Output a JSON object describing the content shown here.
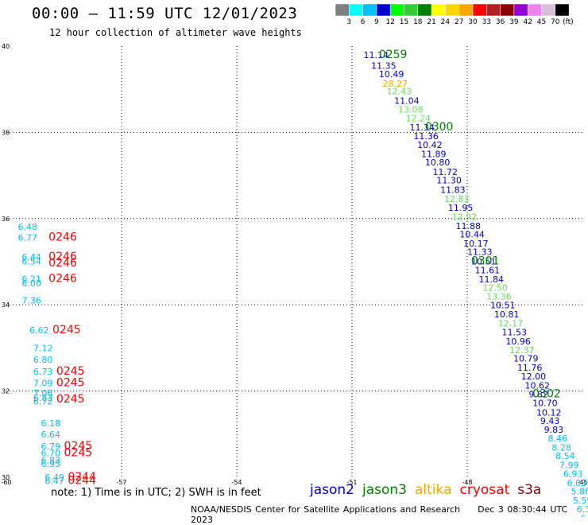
{
  "header": {
    "title": "00:00 – 11:59 UTC 12/01/2023",
    "subtitle": "12 hour collection of altimeter wave heights"
  },
  "colorbar": {
    "colors": [
      "#808080",
      "#00ffff",
      "#00bfff",
      "#0000cd",
      "#00ff00",
      "#32cd32",
      "#008000",
      "#ffff00",
      "#ffd700",
      "#ffa500",
      "#ff0000",
      "#b22222",
      "#8b0000",
      "#9400d3",
      "#ee82ee",
      "#d8bfd8",
      "#000000"
    ],
    "labels": [
      "3",
      "6",
      "9",
      "12",
      "15",
      "18",
      "21",
      "24",
      "27",
      "30",
      "33",
      "36",
      "39",
      "42",
      "45",
      "70"
    ],
    "unit": "(ft)"
  },
  "axes": {
    "lon_ticks": [
      "-60",
      "-57",
      "-54",
      "-51",
      "-48",
      "-45"
    ],
    "lat_ticks": [
      "40",
      "38",
      "36",
      "34",
      "32",
      "30"
    ]
  },
  "palette": {
    "jason2": "#0000cd",
    "jason3": "#008000",
    "altika": "#ffa500",
    "cryosat": "#ff0000",
    "s3a": "#8b0000",
    "cyan": "#00bfff",
    "lightgreen": "#66dd66"
  },
  "tracks": {
    "east": [
      {
        "lon": -50.7,
        "lat": 39.72,
        "v": "11.14",
        "c": "jason2"
      },
      {
        "lon": -50.5,
        "lat": 39.47,
        "v": "11.35",
        "c": "jason2"
      },
      {
        "lon": -50.3,
        "lat": 39.28,
        "v": "10.49",
        "c": "jason2"
      },
      {
        "lon": -50.2,
        "lat": 39.06,
        "v": "28.27",
        "c": "altika"
      },
      {
        "lon": -50.1,
        "lat": 38.88,
        "v": "12.43",
        "c": "lightgreen"
      },
      {
        "lon": -49.9,
        "lat": 38.66,
        "v": "11.04",
        "c": "jason2"
      },
      {
        "lon": -49.8,
        "lat": 38.46,
        "v": "13.08",
        "c": "lightgreen"
      },
      {
        "lon": -49.6,
        "lat": 38.26,
        "v": "12.24",
        "c": "lightgreen"
      },
      {
        "lon": -49.5,
        "lat": 38.04,
        "v": "11.34",
        "c": "jason2"
      },
      {
        "lon": -49.4,
        "lat": 37.84,
        "v": "11.36",
        "c": "jason2"
      },
      {
        "lon": -49.3,
        "lat": 37.64,
        "v": "10.42",
        "c": "jason2"
      },
      {
        "lon": -49.2,
        "lat": 37.43,
        "v": "11.89",
        "c": "jason2"
      },
      {
        "lon": -49.1,
        "lat": 37.23,
        "v": "10.80",
        "c": "jason2"
      },
      {
        "lon": -48.9,
        "lat": 37.01,
        "v": "11.72",
        "c": "jason2"
      },
      {
        "lon": -48.8,
        "lat": 36.82,
        "v": "11.30",
        "c": "jason2"
      },
      {
        "lon": -48.7,
        "lat": 36.6,
        "v": "11.83",
        "c": "jason2"
      },
      {
        "lon": -48.6,
        "lat": 36.38,
        "v": "12.83",
        "c": "lightgreen"
      },
      {
        "lon": -48.5,
        "lat": 36.18,
        "v": "11.95",
        "c": "jason2"
      },
      {
        "lon": -48.4,
        "lat": 35.97,
        "v": "12.92",
        "c": "lightgreen"
      },
      {
        "lon": -48.3,
        "lat": 35.76,
        "v": "11.88",
        "c": "jason2"
      },
      {
        "lon": -48.2,
        "lat": 35.56,
        "v": "10.44",
        "c": "jason2"
      },
      {
        "lon": -48.1,
        "lat": 35.35,
        "v": "10.17",
        "c": "jason2"
      },
      {
        "lon": -48.0,
        "lat": 35.16,
        "v": "11.33",
        "c": "jason2"
      },
      {
        "lon": -47.9,
        "lat": 34.94,
        "v": "10.51",
        "c": "jason2"
      },
      {
        "lon": -47.8,
        "lat": 34.73,
        "v": "11.61",
        "c": "jason2"
      },
      {
        "lon": -47.7,
        "lat": 34.52,
        "v": "11.84",
        "c": "jason2"
      },
      {
        "lon": -47.6,
        "lat": 34.33,
        "v": "12.50",
        "c": "lightgreen"
      },
      {
        "lon": -47.5,
        "lat": 34.12,
        "v": "13.36",
        "c": "lightgreen"
      },
      {
        "lon": -47.4,
        "lat": 33.92,
        "v": "10.51",
        "c": "jason2"
      },
      {
        "lon": -47.3,
        "lat": 33.71,
        "v": "10.81",
        "c": "jason2"
      },
      {
        "lon": -47.2,
        "lat": 33.5,
        "v": "12.17",
        "c": "lightgreen"
      },
      {
        "lon": -47.1,
        "lat": 33.29,
        "v": "11.53",
        "c": "jason2"
      },
      {
        "lon": -47.0,
        "lat": 33.08,
        "v": "10.96",
        "c": "jason2"
      },
      {
        "lon": -46.9,
        "lat": 32.88,
        "v": "12.37",
        "c": "lightgreen"
      },
      {
        "lon": -46.8,
        "lat": 32.68,
        "v": "10.79",
        "c": "jason2"
      },
      {
        "lon": -46.7,
        "lat": 32.47,
        "v": "11.76",
        "c": "jason2"
      },
      {
        "lon": -46.6,
        "lat": 32.27,
        "v": "12.00",
        "c": "jason2"
      },
      {
        "lon": -46.5,
        "lat": 32.06,
        "v": "10.62",
        "c": "jason2"
      },
      {
        "lon": -46.4,
        "lat": 31.85,
        "v": "9.82",
        "c": "jason2"
      },
      {
        "lon": -46.3,
        "lat": 31.65,
        "v": "10.70",
        "c": "jason2"
      },
      {
        "lon": -46.2,
        "lat": 31.43,
        "v": "10.12",
        "c": "jason2"
      },
      {
        "lon": -46.1,
        "lat": 31.24,
        "v": "9.43",
        "c": "jason2"
      },
      {
        "lon": -46.0,
        "lat": 31.03,
        "v": "9.83",
        "c": "jason2"
      },
      {
        "lon": -45.9,
        "lat": 30.83,
        "v": "8.46",
        "c": "cyan"
      },
      {
        "lon": -45.8,
        "lat": 30.62,
        "v": "8.28",
        "c": "cyan"
      },
      {
        "lon": -45.7,
        "lat": 30.42,
        "v": "8.54",
        "c": "cyan"
      },
      {
        "lon": -45.6,
        "lat": 30.21,
        "v": "7.99",
        "c": "cyan"
      },
      {
        "lon": -45.5,
        "lat": 30.01,
        "v": "6.93",
        "c": "cyan"
      },
      {
        "lon": -45.4,
        "lat": 29.8,
        "v": "6.03",
        "c": "cyan"
      },
      {
        "lon": -45.3,
        "lat": 29.6,
        "v": "5.86",
        "c": "cyan"
      },
      {
        "lon": -45.25,
        "lat": 29.39,
        "v": "5.59",
        "c": "cyan"
      },
      {
        "lon": -45.15,
        "lat": 29.19,
        "v": "6.30",
        "c": "cyan"
      },
      {
        "lon": -45.05,
        "lat": 28.98,
        "v": "6.09",
        "c": "cyan"
      }
    ],
    "west": [
      {
        "lon": -59.7,
        "lat": 35.74,
        "v": "6.48",
        "c": "cyan"
      },
      {
        "lon": -59.7,
        "lat": 35.49,
        "v": "6.77",
        "c": "cyan"
      },
      {
        "lon": -59.6,
        "lat": 35.04,
        "v": "6.44",
        "c": "cyan"
      },
      {
        "lon": -59.6,
        "lat": 34.94,
        "v": "6.54",
        "c": "cyan"
      },
      {
        "lon": -59.6,
        "lat": 34.53,
        "v": "6.21",
        "c": "cyan"
      },
      {
        "lon": -59.6,
        "lat": 34.43,
        "v": "6.00",
        "c": "cyan"
      },
      {
        "lon": -59.6,
        "lat": 34.03,
        "v": "7.36",
        "c": "cyan"
      },
      {
        "lon": -59.4,
        "lat": 33.34,
        "v": "6.62",
        "c": "cyan"
      },
      {
        "lon": -59.3,
        "lat": 32.92,
        "v": "7.12",
        "c": "cyan"
      },
      {
        "lon": -59.3,
        "lat": 32.66,
        "v": "6.80",
        "c": "cyan"
      },
      {
        "lon": -59.3,
        "lat": 32.38,
        "v": "6.73",
        "c": "cyan"
      },
      {
        "lon": -59.3,
        "lat": 32.11,
        "v": "7.09",
        "c": "cyan"
      },
      {
        "lon": -59.3,
        "lat": 31.88,
        "v": "7.06",
        "c": "cyan"
      },
      {
        "lon": -59.3,
        "lat": 31.77,
        "v": "6.83",
        "c": "cyan"
      },
      {
        "lon": -59.3,
        "lat": 31.69,
        "v": "6.72",
        "c": "cyan"
      },
      {
        "lon": -59.1,
        "lat": 31.18,
        "v": "6.18",
        "c": "cyan"
      },
      {
        "lon": -59.1,
        "lat": 30.92,
        "v": "6.64",
        "c": "cyan"
      },
      {
        "lon": -59.1,
        "lat": 30.65,
        "v": "6.79",
        "c": "cyan"
      },
      {
        "lon": -59.1,
        "lat": 30.49,
        "v": "6.70",
        "c": "cyan"
      },
      {
        "lon": -59.1,
        "lat": 30.32,
        "v": "6.83",
        "c": "cyan"
      },
      {
        "lon": -59.1,
        "lat": 30.24,
        "v": "6.95",
        "c": "cyan"
      },
      {
        "lon": -59.0,
        "lat": 29.93,
        "v": "6.49",
        "c": "cyan"
      },
      {
        "lon": -59.0,
        "lat": 29.84,
        "v": "6.47",
        "c": "cyan"
      }
    ],
    "times": [
      {
        "lon": -50.3,
        "lat": 39.72,
        "t": "0259",
        "c": "jason3"
      },
      {
        "lon": -49.1,
        "lat": 38.04,
        "t": "0300",
        "c": "jason3"
      },
      {
        "lon": -47.9,
        "lat": 34.94,
        "t": "0301",
        "c": "jason3"
      },
      {
        "lon": -46.3,
        "lat": 31.85,
        "t": "0302",
        "c": "jason3"
      },
      {
        "lon": -58.9,
        "lat": 35.49,
        "t": "0246",
        "c": "cryosat"
      },
      {
        "lon": -58.9,
        "lat": 35.04,
        "t": "0246",
        "c": "cryosat"
      },
      {
        "lon": -58.9,
        "lat": 34.89,
        "t": "0246",
        "c": "cryosat"
      },
      {
        "lon": -58.9,
        "lat": 34.53,
        "t": "0246",
        "c": "cryosat"
      },
      {
        "lon": -58.8,
        "lat": 33.34,
        "t": "0245",
        "c": "cryosat"
      },
      {
        "lon": -58.7,
        "lat": 32.38,
        "t": "0245",
        "c": "cryosat"
      },
      {
        "lon": -58.7,
        "lat": 32.11,
        "t": "0245",
        "c": "cryosat"
      },
      {
        "lon": -58.7,
        "lat": 31.73,
        "t": "0245",
        "c": "cryosat"
      },
      {
        "lon": -58.5,
        "lat": 30.65,
        "t": "0245",
        "c": "cryosat"
      },
      {
        "lon": -58.5,
        "lat": 30.49,
        "t": "0245",
        "c": "cryosat"
      },
      {
        "lon": -58.4,
        "lat": 29.93,
        "t": "0244",
        "c": "cryosat"
      },
      {
        "lon": -58.4,
        "lat": 29.84,
        "t": "0244",
        "c": "cryosat"
      }
    ]
  },
  "note": "note: 1) Time is in UTC; 2) SWH is in feet",
  "legend": [
    {
      "label": "jason2",
      "color": "#0000cd"
    },
    {
      "label": "jason3",
      "color": "#008000"
    },
    {
      "label": "altika",
      "color": "#ffa500"
    },
    {
      "label": "cryosat",
      "color": "#ff0000"
    },
    {
      "label": "s3a",
      "color": "#8b0000"
    }
  ],
  "footer": {
    "credit": "NOAA/NESDIS Center for Satellite Applications and Research",
    "timestamp": "Dec  3 08:30:44 UTC 2023"
  }
}
